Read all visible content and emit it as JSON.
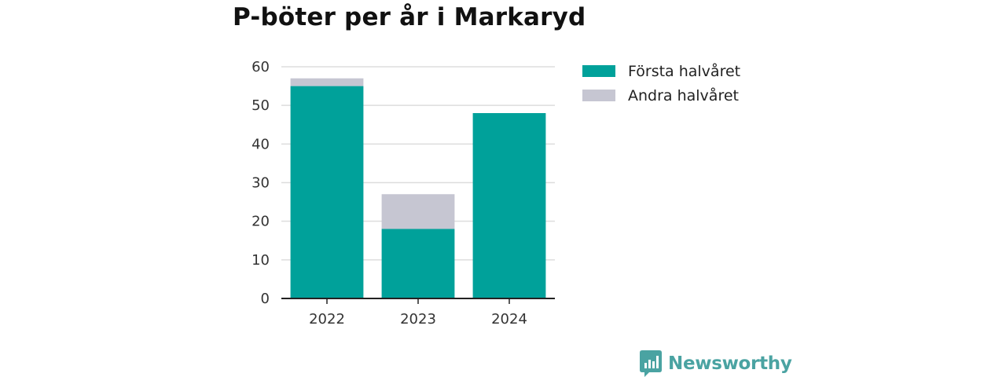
{
  "title": "P-böter per år i Markaryd",
  "chart_data": {
    "type": "bar",
    "stacked": true,
    "title": "P-böter per år i Markaryd",
    "categories": [
      "2022",
      "2023",
      "2024"
    ],
    "series": [
      {
        "name": "Första halvåret",
        "color": "#00a19a",
        "values": [
          55,
          18,
          48
        ]
      },
      {
        "name": "Andra halvåret",
        "color": "#c6c6d2",
        "values": [
          2,
          9,
          0
        ]
      }
    ],
    "xlabel": "",
    "ylabel": "",
    "ylim": [
      0,
      60
    ],
    "yticks": [
      0,
      10,
      20,
      30,
      40,
      50,
      60
    ],
    "grid": true,
    "legend_position": "right"
  },
  "brand": {
    "name": "Newsworthy",
    "icon": "newsworthy-logo-icon",
    "color": "#4aa3a2"
  }
}
